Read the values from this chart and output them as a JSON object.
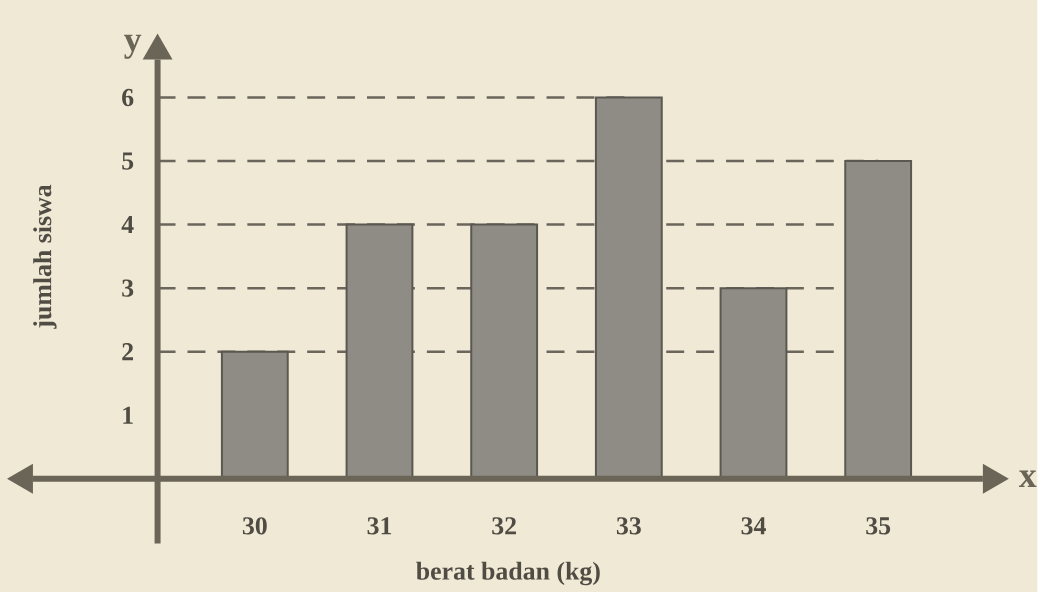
{
  "chart_data": {
    "type": "bar",
    "xlabel": "berat badan (kg)",
    "ylabel": "jumlah siswa",
    "categories": [
      "30",
      "31",
      "32",
      "33",
      "34",
      "35"
    ],
    "values": [
      2,
      4,
      4,
      6,
      3,
      5
    ],
    "color": "#8e8c84",
    "ylim": [
      0,
      6.6
    ],
    "yticks": [
      1,
      2,
      3,
      4,
      5,
      6
    ],
    "ref_lines": [
      {
        "axis": "y",
        "value": 2,
        "line_style": "dashed",
        "color": "#6a665c"
      },
      {
        "axis": "y",
        "value": 3,
        "line_style": "dashed",
        "color": "#6a665c"
      },
      {
        "axis": "y",
        "value": 4,
        "line_style": "dashed",
        "color": "#6a665c"
      },
      {
        "axis": "y",
        "value": 5,
        "line_style": "dashed",
        "color": "#6a665c"
      },
      {
        "axis": "y",
        "value": 6,
        "line_style": "dashed",
        "color": "#6a665c"
      }
    ],
    "annotations": [
      "y",
      "x"
    ]
  }
}
